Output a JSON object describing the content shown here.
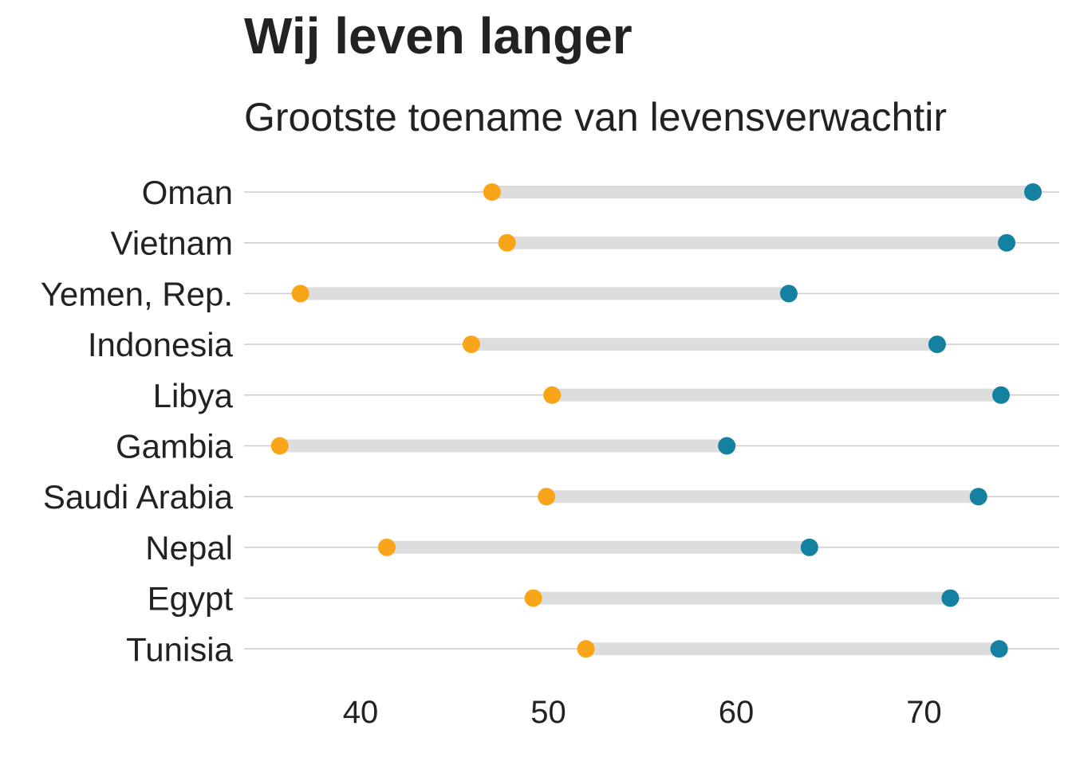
{
  "chart_data": {
    "type": "dumbbell",
    "title": "Wij leven langer",
    "subtitle": "Grootste toename van levensverwachtir",
    "xlabel": "",
    "ylabel": "",
    "xlim": [
      33.8,
      77.2
    ],
    "xticks": [
      40,
      50,
      60,
      70
    ],
    "grid": "horizontal",
    "legend": "none",
    "colors": {
      "start": "#F9A51A",
      "end": "#1581A0",
      "segment": "#DDDDDD",
      "gridline": "#CCCCCC"
    },
    "categories": [
      "Oman",
      "Vietnam",
      "Yemen, Rep.",
      "Indonesia",
      "Libya",
      "Gambia",
      "Saudi Arabia",
      "Nepal",
      "Egypt",
      "Tunisia"
    ],
    "series": [
      {
        "values": [
          47.0,
          47.8,
          36.8,
          45.9,
          50.2,
          35.7,
          49.9,
          41.4,
          49.2,
          52.0
        ]
      },
      {
        "values": [
          75.8,
          74.4,
          62.8,
          70.7,
          74.1,
          59.5,
          72.9,
          63.9,
          71.4,
          74.0
        ]
      }
    ]
  }
}
